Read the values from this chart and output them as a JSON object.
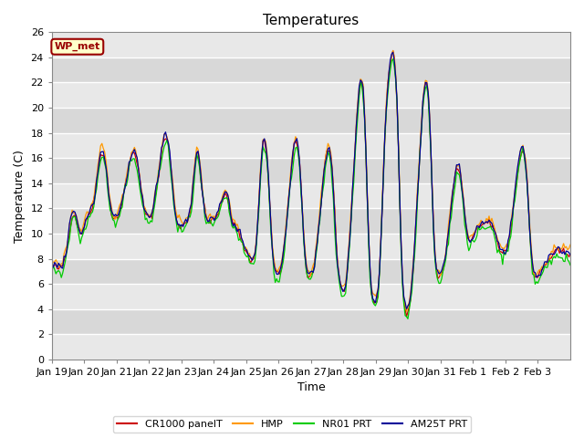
{
  "title": "Temperatures",
  "xlabel": "Time",
  "ylabel": "Temperature (C)",
  "ylim": [
    0,
    26
  ],
  "yticks": [
    0,
    2,
    4,
    6,
    8,
    10,
    12,
    14,
    16,
    18,
    20,
    22,
    24,
    26
  ],
  "series_colors": [
    "#cc0000",
    "#ff9900",
    "#00cc00",
    "#000099"
  ],
  "series_labels": [
    "CR1000 panelT",
    "HMP",
    "NR01 PRT",
    "AM25T PRT"
  ],
  "legend_label": "WP_met",
  "legend_label_color": "#990000",
  "legend_bg": "#ffffcc",
  "legend_border": "#990000",
  "plot_bg_light": "#e8e8e8",
  "plot_bg_dark": "#d8d8d8",
  "title_fontsize": 11,
  "axis_label_fontsize": 9,
  "tick_fontsize": 8
}
